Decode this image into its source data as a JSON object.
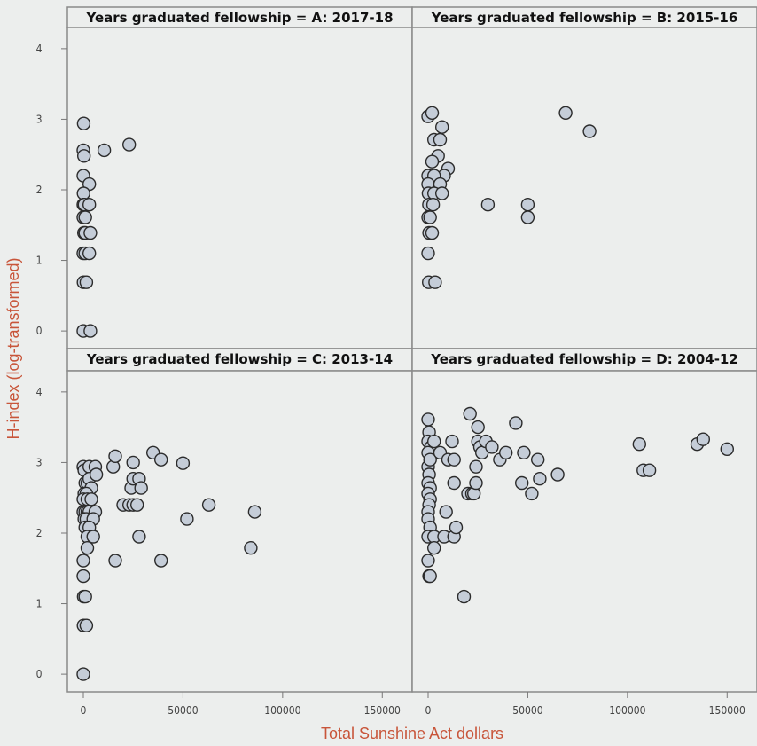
{
  "chart_data": {
    "type": "scatter",
    "xlabel": "Total Sunshine Act dollars",
    "ylabel": "H-index (log-transformed)",
    "xlim": [
      -8000,
      165000
    ],
    "ylim": [
      -0.25,
      4.3
    ],
    "x_ticks": [
      0,
      50000,
      100000,
      150000
    ],
    "x_tick_labels": [
      "0",
      "50000",
      "100000",
      "150000"
    ],
    "y_ticks": [
      0,
      1,
      2,
      3,
      4
    ],
    "y_tick_labels": [
      "0",
      "1",
      "2",
      "3",
      "4"
    ],
    "marker_fill": "#c5cdd8",
    "marker_edge": "#2b2b2b",
    "background": "#eceeed",
    "grid": false,
    "panels": [
      {
        "title": "Years graduated fellowship = A: 2017-18",
        "points": [
          [
            200,
            2.94
          ],
          [
            0,
            2.56
          ],
          [
            300,
            2.48
          ],
          [
            10500,
            2.56
          ],
          [
            23000,
            2.64
          ],
          [
            0,
            2.2
          ],
          [
            3000,
            2.08
          ],
          [
            100,
            1.95
          ],
          [
            0,
            1.79
          ],
          [
            600,
            1.79
          ],
          [
            3000,
            1.79
          ],
          [
            0,
            1.61
          ],
          [
            1000,
            1.61
          ],
          [
            300,
            1.39
          ],
          [
            1000,
            1.39
          ],
          [
            3500,
            1.39
          ],
          [
            0,
            1.1
          ],
          [
            1000,
            1.1
          ],
          [
            3000,
            1.1
          ],
          [
            100,
            0.69
          ],
          [
            1500,
            0.69
          ],
          [
            0,
            0
          ],
          [
            3500,
            0
          ]
        ]
      },
      {
        "title": "Years graduated fellowship = B: 2015-16",
        "points": [
          [
            0,
            3.04
          ],
          [
            2000,
            3.09
          ],
          [
            7000,
            2.89
          ],
          [
            3000,
            2.71
          ],
          [
            6000,
            2.71
          ],
          [
            5000,
            2.48
          ],
          [
            2000,
            2.4
          ],
          [
            10000,
            2.3
          ],
          [
            8000,
            2.2
          ],
          [
            0,
            2.2
          ],
          [
            3000,
            2.2
          ],
          [
            0,
            2.08
          ],
          [
            6000,
            2.08
          ],
          [
            200,
            1.95
          ],
          [
            3000,
            1.95
          ],
          [
            7000,
            1.95
          ],
          [
            400,
            1.79
          ],
          [
            2500,
            1.79
          ],
          [
            0,
            1.61
          ],
          [
            1000,
            1.61
          ],
          [
            500,
            1.39
          ],
          [
            2000,
            1.39
          ],
          [
            0,
            1.1
          ],
          [
            300,
            0.69
          ],
          [
            3500,
            0.69
          ],
          [
            30000,
            1.79
          ],
          [
            50000,
            1.79
          ],
          [
            50000,
            1.61
          ],
          [
            69000,
            3.09
          ],
          [
            81000,
            2.83
          ]
        ]
      },
      {
        "title": "Years graduated fellowship  = C: 2013-14",
        "points": [
          [
            0,
            2.94
          ],
          [
            500,
            2.89
          ],
          [
            3000,
            2.94
          ],
          [
            6000,
            2.94
          ],
          [
            1000,
            2.71
          ],
          [
            2000,
            2.71
          ],
          [
            3000,
            2.77
          ],
          [
            4000,
            2.64
          ],
          [
            500,
            2.56
          ],
          [
            1500,
            2.56
          ],
          [
            6500,
            2.83
          ],
          [
            0,
            2.48
          ],
          [
            2000,
            2.48
          ],
          [
            4000,
            2.48
          ],
          [
            0,
            2.3
          ],
          [
            1000,
            2.3
          ],
          [
            2000,
            2.3
          ],
          [
            3000,
            2.3
          ],
          [
            6000,
            2.3
          ],
          [
            500,
            2.2
          ],
          [
            1500,
            2.2
          ],
          [
            5000,
            2.2
          ],
          [
            1000,
            2.08
          ],
          [
            3000,
            2.08
          ],
          [
            2000,
            1.95
          ],
          [
            5000,
            1.95
          ],
          [
            2000,
            1.79
          ],
          [
            0,
            1.61
          ],
          [
            0,
            1.39
          ],
          [
            200,
            1.1
          ],
          [
            1000,
            1.1
          ],
          [
            100,
            0.69
          ],
          [
            1500,
            0.69
          ],
          [
            0,
            0
          ],
          [
            15000,
            2.94
          ],
          [
            16000,
            3.09
          ],
          [
            20000,
            2.4
          ],
          [
            23000,
            2.4
          ],
          [
            24000,
            2.64
          ],
          [
            25000,
            2.77
          ],
          [
            25000,
            2.4
          ],
          [
            25000,
            3.0
          ],
          [
            27000,
            2.4
          ],
          [
            28000,
            2.77
          ],
          [
            29000,
            2.64
          ],
          [
            35000,
            3.14
          ],
          [
            39000,
            3.04
          ],
          [
            50000,
            2.99
          ],
          [
            28000,
            1.95
          ],
          [
            16000,
            1.61
          ],
          [
            39000,
            1.61
          ],
          [
            52000,
            2.2
          ],
          [
            63000,
            2.4
          ],
          [
            84000,
            1.79
          ],
          [
            86000,
            2.3
          ]
        ]
      },
      {
        "title": "Years graduated fellowship  = D: 2004-12",
        "points": [
          [
            0,
            3.61
          ],
          [
            500,
            3.43
          ],
          [
            0,
            3.3
          ],
          [
            1500,
            3.22
          ],
          [
            3000,
            3.3
          ],
          [
            0,
            3.14
          ],
          [
            0,
            2.94
          ],
          [
            1000,
            3.04
          ],
          [
            500,
            2.83
          ],
          [
            0,
            2.71
          ],
          [
            1000,
            2.64
          ],
          [
            0,
            2.56
          ],
          [
            1000,
            2.48
          ],
          [
            500,
            2.4
          ],
          [
            0,
            2.3
          ],
          [
            0,
            2.2
          ],
          [
            1000,
            2.08
          ],
          [
            0,
            1.95
          ],
          [
            3000,
            1.95
          ],
          [
            3000,
            1.79
          ],
          [
            0,
            1.61
          ],
          [
            500,
            1.39
          ],
          [
            1000,
            1.39
          ],
          [
            6000,
            3.14
          ],
          [
            8000,
            1.95
          ],
          [
            9000,
            2.3
          ],
          [
            10000,
            3.04
          ],
          [
            12000,
            3.3
          ],
          [
            13000,
            3.04
          ],
          [
            13000,
            1.95
          ],
          [
            14000,
            2.08
          ],
          [
            13000,
            2.71
          ],
          [
            18000,
            1.1
          ],
          [
            20000,
            2.56
          ],
          [
            21000,
            3.69
          ],
          [
            22000,
            2.56
          ],
          [
            23000,
            2.56
          ],
          [
            24000,
            2.71
          ],
          [
            24000,
            2.94
          ],
          [
            25000,
            3.3
          ],
          [
            25000,
            3.5
          ],
          [
            26000,
            3.22
          ],
          [
            27000,
            3.14
          ],
          [
            29000,
            3.3
          ],
          [
            32000,
            3.22
          ],
          [
            36000,
            3.04
          ],
          [
            39000,
            3.14
          ],
          [
            44000,
            3.56
          ],
          [
            48000,
            3.14
          ],
          [
            47000,
            2.71
          ],
          [
            52000,
            2.56
          ],
          [
            55000,
            3.04
          ],
          [
            56000,
            2.77
          ],
          [
            65000,
            2.83
          ],
          [
            106000,
            3.26
          ],
          [
            108000,
            2.89
          ],
          [
            111000,
            2.89
          ],
          [
            135000,
            3.26
          ],
          [
            138000,
            3.33
          ],
          [
            150000,
            3.19
          ]
        ]
      }
    ]
  }
}
